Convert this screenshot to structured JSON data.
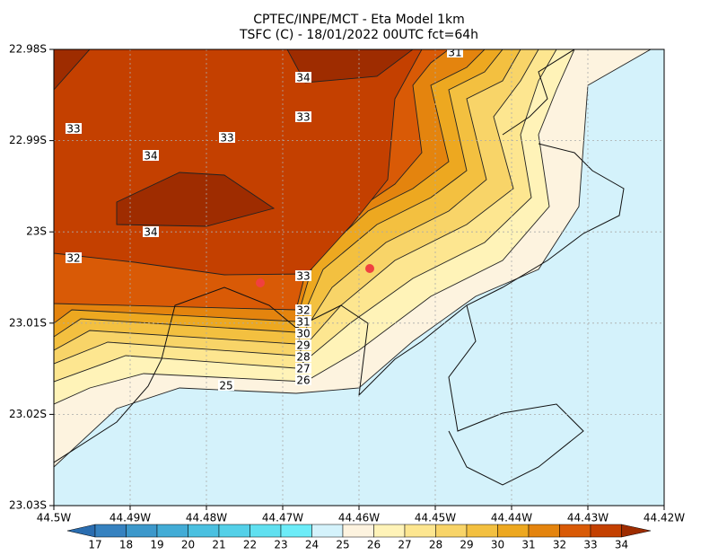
{
  "title": [
    "CPTEC/INPE/MCT -  Eta Model 1km",
    "TSFC (C) - 18/01/2022 00UTC fct=64h"
  ],
  "lat_ticks": [
    "22.98S",
    "22.99S",
    "23S",
    "23.01S",
    "23.02S",
    "23.03S"
  ],
  "lon_ticks": [
    "44.5W",
    "44.49W",
    "44.48W",
    "44.47W",
    "44.46W",
    "44.45W",
    "44.44W",
    "44.43W",
    "44.42W"
  ],
  "colorbar": {
    "levels": [
      17,
      18,
      19,
      20,
      21,
      22,
      23,
      24,
      25,
      26,
      27,
      28,
      29,
      30,
      31,
      32,
      33,
      34
    ],
    "colors": [
      "#2a6db0",
      "#3682c0",
      "#3c98cb",
      "#42acd6",
      "#4ac0e0",
      "#54d0e8",
      "#60e0f0",
      "#6cecf8",
      "#d4f2fb",
      "#fdf3df",
      "#fff3b8",
      "#fde690",
      "#f8d468",
      "#f3c040",
      "#eda820",
      "#e4840e",
      "#d95a06",
      "#c44000",
      "#9e2c00"
    ]
  },
  "contour_labels": [
    31,
    34,
    33,
    33,
    33,
    34,
    34,
    32,
    33,
    32,
    31,
    30,
    29,
    28,
    27,
    26,
    25
  ]
}
